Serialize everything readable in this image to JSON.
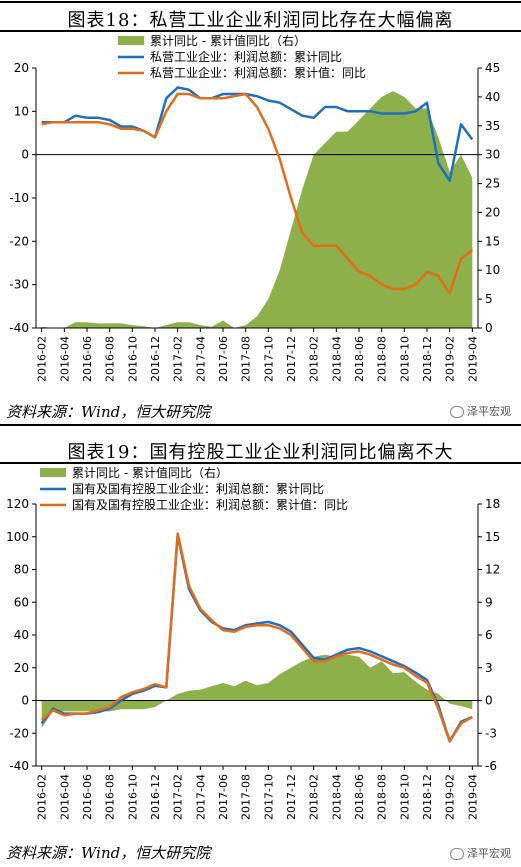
{
  "charts": [
    {
      "title": "图表18：私营工业企业利润同比存在大幅偏离",
      "source": "资料来源：Wind，恒大研究院",
      "watermark": "泽平宏观",
      "chart_data": {
        "type": "line",
        "x": [
          "2016-02",
          "2016-03",
          "2016-04",
          "2016-05",
          "2016-06",
          "2016-07",
          "2016-08",
          "2016-09",
          "2016-10",
          "2016-11",
          "2016-12",
          "2017-01",
          "2017-02",
          "2017-03",
          "2017-04",
          "2017-05",
          "2017-06",
          "2017-07",
          "2017-08",
          "2017-09",
          "2017-10",
          "2017-11",
          "2017-12",
          "2018-01",
          "2018-02",
          "2018-03",
          "2018-04",
          "2018-05",
          "2018-06",
          "2018-07",
          "2018-08",
          "2018-09",
          "2018-10",
          "2018-11",
          "2018-12",
          "2019-01",
          "2019-02",
          "2019-03",
          "2019-04"
        ],
        "x_ticks": [
          "2016-02",
          "2016-04",
          "2016-06",
          "2016-08",
          "2016-10",
          "2016-12",
          "2017-02",
          "2017-04",
          "2017-06",
          "2017-08",
          "2017-10",
          "2017-12",
          "2018-02",
          "2018-04",
          "2018-06",
          "2018-08",
          "2018-10",
          "2018-12",
          "2019-02",
          "2019-04"
        ],
        "ylim_left": [
          -40,
          20
        ],
        "yticks_left": [
          20,
          10,
          0,
          -10,
          -20,
          -30,
          -40
        ],
        "ylim_right": [
          0,
          45
        ],
        "yticks_right": [
          45,
          40,
          35,
          30,
          25,
          20,
          15,
          10,
          5,
          0
        ],
        "series": [
          {
            "name": "累计同比 - 累计值同比（右）",
            "type": "area",
            "axis": "right",
            "color": "#8DB04B",
            "values": [
              0.2,
              0,
              0,
              1,
              1,
              0.8,
              0.8,
              0.8,
              0.5,
              0.3,
              0,
              0.5,
              1,
              1,
              0.5,
              0.2,
              1.3,
              0,
              0.5,
              2,
              5,
              10,
              17,
              24,
              30,
              32,
              34,
              34,
              36,
              38,
              40,
              41,
              40,
              38,
              38,
              33,
              27,
              30,
              26
            ]
          },
          {
            "name": "私营工业企业：利润总额：累计同比",
            "type": "line",
            "axis": "left",
            "color": "#1F6FBF",
            "values": [
              7.5,
              7.5,
              7.5,
              9.0,
              8.5,
              8.5,
              8.0,
              6.5,
              6.5,
              5.5,
              4.0,
              13.0,
              15.5,
              15.0,
              13.0,
              13.0,
              14.0,
              14.0,
              14.0,
              13.5,
              12.5,
              12.0,
              10.5,
              9.0,
              8.5,
              11.0,
              11.0,
              10.0,
              10.0,
              10.0,
              9.5,
              9.5,
              9.5,
              10.0,
              12.0,
              -2.0,
              -6.0,
              7.0,
              3.5
            ]
          },
          {
            "name": "私营工业企业：利润总额：累计值：同比",
            "type": "line",
            "axis": "left",
            "color": "#E36C1B",
            "values": [
              7.0,
              7.5,
              7.5,
              7.5,
              7.5,
              7.5,
              7.0,
              6.0,
              6.0,
              5.5,
              4.0,
              10.0,
              14.0,
              14.0,
              13.0,
              13.0,
              13.0,
              13.5,
              14.0,
              11.0,
              6.0,
              -1.0,
              -10.0,
              -18.0,
              -21.0,
              -21.0,
              -21.0,
              -24.0,
              -27.0,
              -28.0,
              -30.0,
              -31.0,
              -31.0,
              -30.0,
              -27.0,
              -28.0,
              -32.0,
              -24.0,
              -22.0
            ]
          }
        ]
      }
    },
    {
      "title": "图表19：国有控股工业企业利润同比偏离不大",
      "source": "资料来源：Wind，恒大研究院",
      "watermark": "泽平宏观",
      "chart_data": {
        "type": "line",
        "x": [
          "2016-02",
          "2016-03",
          "2016-04",
          "2016-05",
          "2016-06",
          "2016-07",
          "2016-08",
          "2016-09",
          "2016-10",
          "2016-11",
          "2016-12",
          "2017-01",
          "2017-02",
          "2017-03",
          "2017-04",
          "2017-05",
          "2017-06",
          "2017-07",
          "2017-08",
          "2017-09",
          "2017-10",
          "2017-11",
          "2017-12",
          "2018-01",
          "2018-02",
          "2018-03",
          "2018-04",
          "2018-05",
          "2018-06",
          "2018-07",
          "2018-08",
          "2018-09",
          "2018-10",
          "2018-11",
          "2018-12",
          "2019-01",
          "2019-02",
          "2019-03",
          "2019-04"
        ],
        "x_ticks": [
          "2016-02",
          "2016-04",
          "2016-06",
          "2016-08",
          "2016-10",
          "2016-12",
          "2017-02",
          "2017-04",
          "2017-06",
          "2017-08",
          "2017-10",
          "2017-12",
          "2018-02",
          "2018-04",
          "2018-06",
          "2018-08",
          "2018-10",
          "2018-12",
          "2019-02",
          "2019-04"
        ],
        "ylim_left": [
          -40,
          120
        ],
        "yticks_left": [
          120,
          100,
          80,
          60,
          40,
          20,
          0,
          -20,
          -40
        ],
        "ylim_right": [
          -6,
          18
        ],
        "yticks_right": [
          18,
          15,
          12,
          9,
          6,
          3,
          0,
          -3,
          -6
        ],
        "series": [
          {
            "name": "累计同比 - 累计值同比（右）",
            "type": "area",
            "axis": "right",
            "color": "#8DB04B",
            "values": [
              -2.5,
              -1.0,
              -1.0,
              -1.0,
              -1.0,
              -1.0,
              -1.0,
              -0.8,
              -0.8,
              -0.8,
              -0.6,
              0,
              0.6,
              0.9,
              1.0,
              1.3,
              1.6,
              1.3,
              1.8,
              1.4,
              1.6,
              2.4,
              3.0,
              3.6,
              4.0,
              4.2,
              4.0,
              4.2,
              4.0,
              3.0,
              3.6,
              2.5,
              2.6,
              1.7,
              1.0,
              0.6,
              -0.3,
              -0.5,
              -0.8
            ]
          },
          {
            "name": "国有及国有控股工业企业：利润总额：累计同比",
            "type": "line",
            "axis": "left",
            "color": "#1F6FBF",
            "values": [
              -14,
              -5,
              -8,
              -8,
              -8,
              -7,
              -5,
              0,
              4,
              6,
              9,
              8,
              101,
              68,
              55,
              48,
              44,
              43,
              46,
              47,
              48,
              46,
              42,
              34,
              26,
              25,
              28,
              31,
              32,
              30,
              27,
              24,
              21,
              17,
              12.5,
              -3,
              -25,
              -13,
              -10
            ]
          },
          {
            "name": "国有及国有控股工业企业：利润总额：累计值：同比",
            "type": "line",
            "axis": "left",
            "color": "#E36C1B",
            "values": [
              -12,
              -6,
              -9,
              -8,
              -8,
              -6,
              -4,
              2,
              5,
              7,
              10,
              8,
              102,
              70,
              56,
              49,
              43,
              42,
              45,
              46,
              46,
              44,
              40,
              32,
              24,
              24,
              27,
              29,
              30,
              28,
              25,
              22,
              20,
              15,
              11,
              -5,
              -25,
              -14,
              -10
            ]
          }
        ]
      }
    }
  ]
}
